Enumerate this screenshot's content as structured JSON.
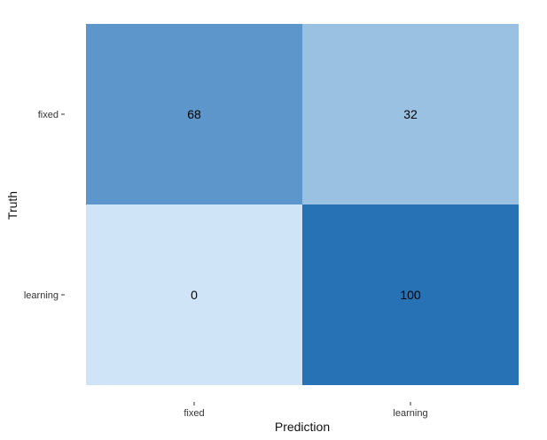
{
  "chart_data": {
    "type": "heatmap",
    "title": "",
    "xlabel": "Prediction",
    "ylabel": "Truth",
    "x_categories": [
      "fixed",
      "learning"
    ],
    "y_categories": [
      "fixed",
      "learning"
    ],
    "values": [
      [
        68,
        32
      ],
      [
        0,
        100
      ]
    ],
    "value_labels": [
      [
        "68",
        "32"
      ],
      [
        "0",
        "100"
      ]
    ],
    "color_scale": {
      "low": "#d0e4f7",
      "high": "#2672b5"
    },
    "grid": false,
    "legend": "none"
  }
}
